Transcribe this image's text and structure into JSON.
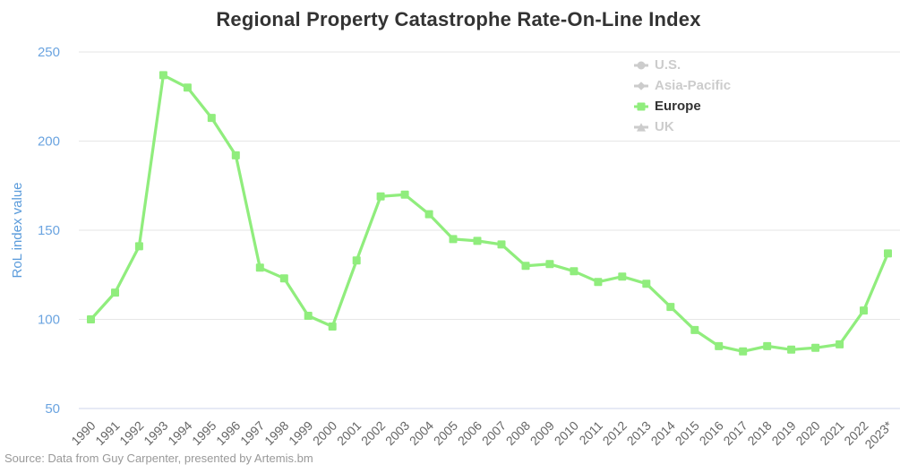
{
  "chart_data": {
    "type": "line",
    "title": "Regional Property Catastrophe Rate-On-Line Index",
    "ylabel": "RoL index value",
    "xlabel": "",
    "ylim": [
      50,
      250
    ],
    "yticks": [
      50,
      100,
      150,
      200,
      250
    ],
    "grid": true,
    "legend_position": "top-right",
    "categories": [
      "1990",
      "1991",
      "1992",
      "1993",
      "1994",
      "1995",
      "1996",
      "1997",
      "1998",
      "1999",
      "2000",
      "2001",
      "2002",
      "2003",
      "2004",
      "2005",
      "2006",
      "2007",
      "2008",
      "2009",
      "2010",
      "2011",
      "2012",
      "2013",
      "2014",
      "2015",
      "2016",
      "2017",
      "2018",
      "2019",
      "2020",
      "2021",
      "2022",
      "2023*"
    ],
    "series": [
      {
        "name": "U.S.",
        "marker": "circle",
        "visible": false,
        "color": "#cccccc",
        "label_color": "#cccccc",
        "values": []
      },
      {
        "name": "Asia-Pacific",
        "marker": "diamond",
        "visible": false,
        "color": "#cccccc",
        "label_color": "#cccccc",
        "values": []
      },
      {
        "name": "Europe",
        "marker": "square",
        "visible": true,
        "color": "#90ed7d",
        "label_color": "#333333",
        "values": [
          100,
          115,
          141,
          237,
          230,
          213,
          192,
          129,
          123,
          102,
          96,
          133,
          169,
          170,
          159,
          145,
          144,
          142,
          130,
          131,
          127,
          121,
          124,
          120,
          107,
          94,
          85,
          82,
          85,
          83,
          84,
          86,
          105,
          137
        ]
      },
      {
        "name": "UK",
        "marker": "triangle",
        "visible": false,
        "color": "#cccccc",
        "label_color": "#cccccc",
        "values": []
      }
    ],
    "source": "Source: Data from Guy Carpenter, presented by Artemis.bm",
    "colors": {
      "title": "#333333",
      "ytick_labels": "#6ba4e0",
      "yaxis_title": "#5a9bdb",
      "xtick_labels": "#666666",
      "grid": "#e6e6e6",
      "axis_line": "#ccd6eb",
      "source": "#999999"
    }
  }
}
